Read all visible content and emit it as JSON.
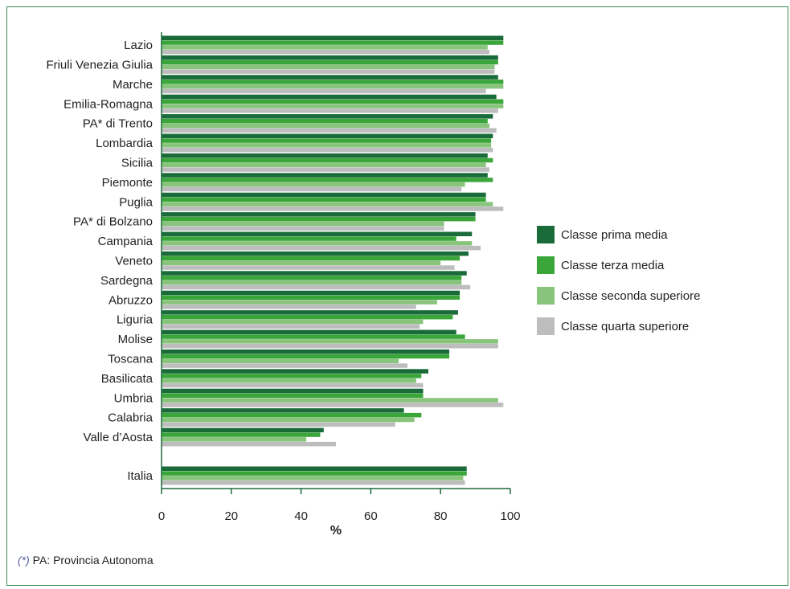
{
  "chart_data": {
    "type": "bar",
    "orientation": "horizontal",
    "categories": [
      "Lazio",
      "Friuli Venezia Giulia",
      "Marche",
      "Emilia-Romagna",
      "PA* di Trento",
      "Lombardia",
      "Sicilia",
      "Piemonte",
      "Puglia",
      "PA* di Bolzano",
      "Campania",
      "Veneto",
      "Sardegna",
      "Abruzzo",
      "Liguria",
      "Molise",
      "Toscana",
      "Basilicata",
      "Umbria",
      "Calabria",
      "Valle d’Aosta",
      "Italia"
    ],
    "series": [
      {
        "name": "Classe prima media",
        "color": "#1a6b3a",
        "values": [
          98,
          96.5,
          96.5,
          96,
          95,
          95,
          93.5,
          93.5,
          93,
          90,
          89,
          88,
          87.5,
          85.5,
          85,
          84.5,
          82.5,
          76.5,
          75,
          69.5,
          46.5,
          87.5
        ]
      },
      {
        "name": "Classe terza media",
        "color": "#3aa63a",
        "values": [
          98,
          96.5,
          98,
          98,
          93.5,
          94.5,
          95,
          95,
          93,
          90,
          84.5,
          85.5,
          86,
          85.5,
          83.5,
          87,
          82.5,
          74.5,
          75,
          74.5,
          45.5,
          87.5
        ]
      },
      {
        "name": "Classe seconda superiore",
        "color": "#88c47b",
        "values": [
          93.5,
          95.5,
          98,
          98,
          94,
          94.5,
          93,
          87,
          95,
          81,
          89,
          80,
          86,
          79,
          75,
          96.5,
          68,
          73,
          96.5,
          72.5,
          41.5,
          86.5
        ]
      },
      {
        "name": "Classe quarta superiore",
        "color": "#bdbdbd",
        "values": [
          94,
          95.5,
          93,
          96.5,
          96,
          95,
          94,
          86,
          98,
          81,
          91.5,
          84,
          88.5,
          73,
          74,
          96.5,
          70.5,
          75,
          98,
          67,
          50,
          87
        ]
      }
    ],
    "xlabel": "%",
    "xlim": [
      0,
      100
    ],
    "xticks": [
      "0",
      "20",
      "40",
      "60",
      "80",
      "100"
    ],
    "legend_position": "right",
    "grid": false
  },
  "footnote": {
    "mark": "(*)",
    "text": " PA: Provincia Autonoma"
  }
}
